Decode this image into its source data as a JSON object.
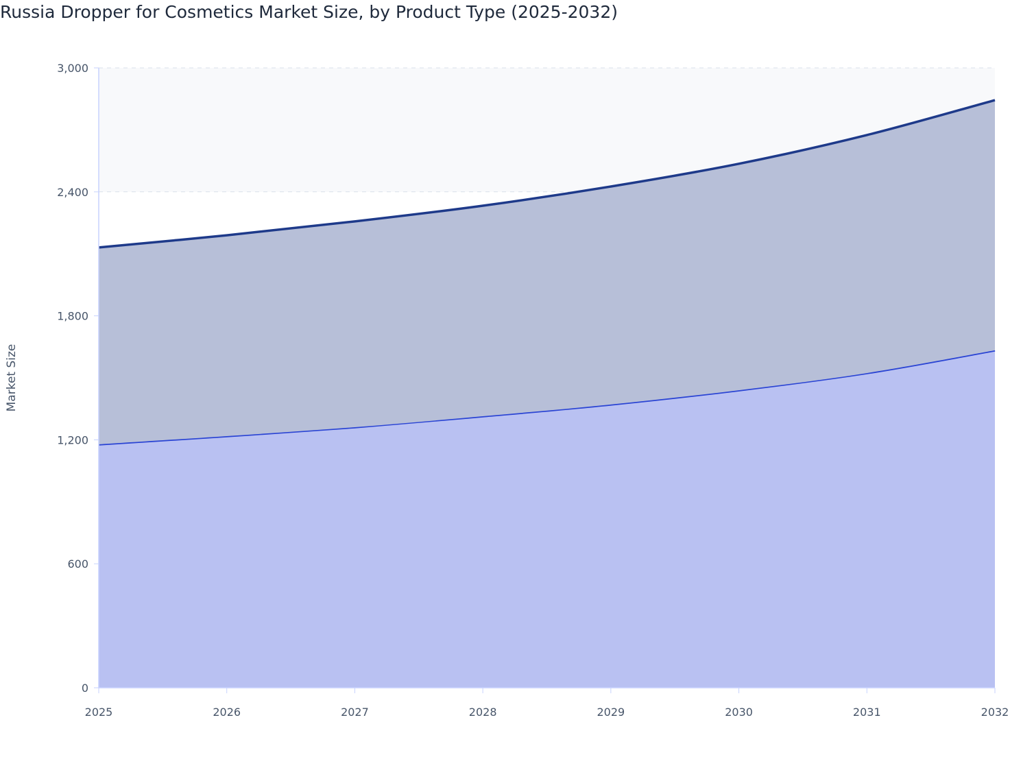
{
  "chart_data": {
    "type": "area",
    "stacked": true,
    "title": "Russia Dropper for Cosmetics Market Size, by Product Type (2025-2032)",
    "xlabel": "",
    "ylabel": "Market Size",
    "x": [
      "2025",
      "2026",
      "2027",
      "2028",
      "2029",
      "2030",
      "2031",
      "2032"
    ],
    "xlim": [
      2025,
      2032
    ],
    "ylim": [
      0,
      3000
    ],
    "yticks": [
      0,
      600,
      1200,
      1800,
      2400,
      3000
    ],
    "ytick_labels": [
      "0",
      "600",
      "1,200",
      "1,800",
      "2,400",
      "3,000"
    ],
    "grid": true,
    "legend": "none",
    "series": [
      {
        "values": [
          1178,
          1218,
          1261,
          1314,
          1371,
          1440,
          1523,
          1633
        ],
        "line_color": "#2a44d4",
        "fill_color": "#b9c1f2"
      },
      {
        "values": [
          953,
          972,
          996,
          1019,
          1055,
          1096,
          1152,
          1211
        ],
        "line_color": "#1e3a8a",
        "fill_color": "#b7bfd8"
      }
    ]
  }
}
